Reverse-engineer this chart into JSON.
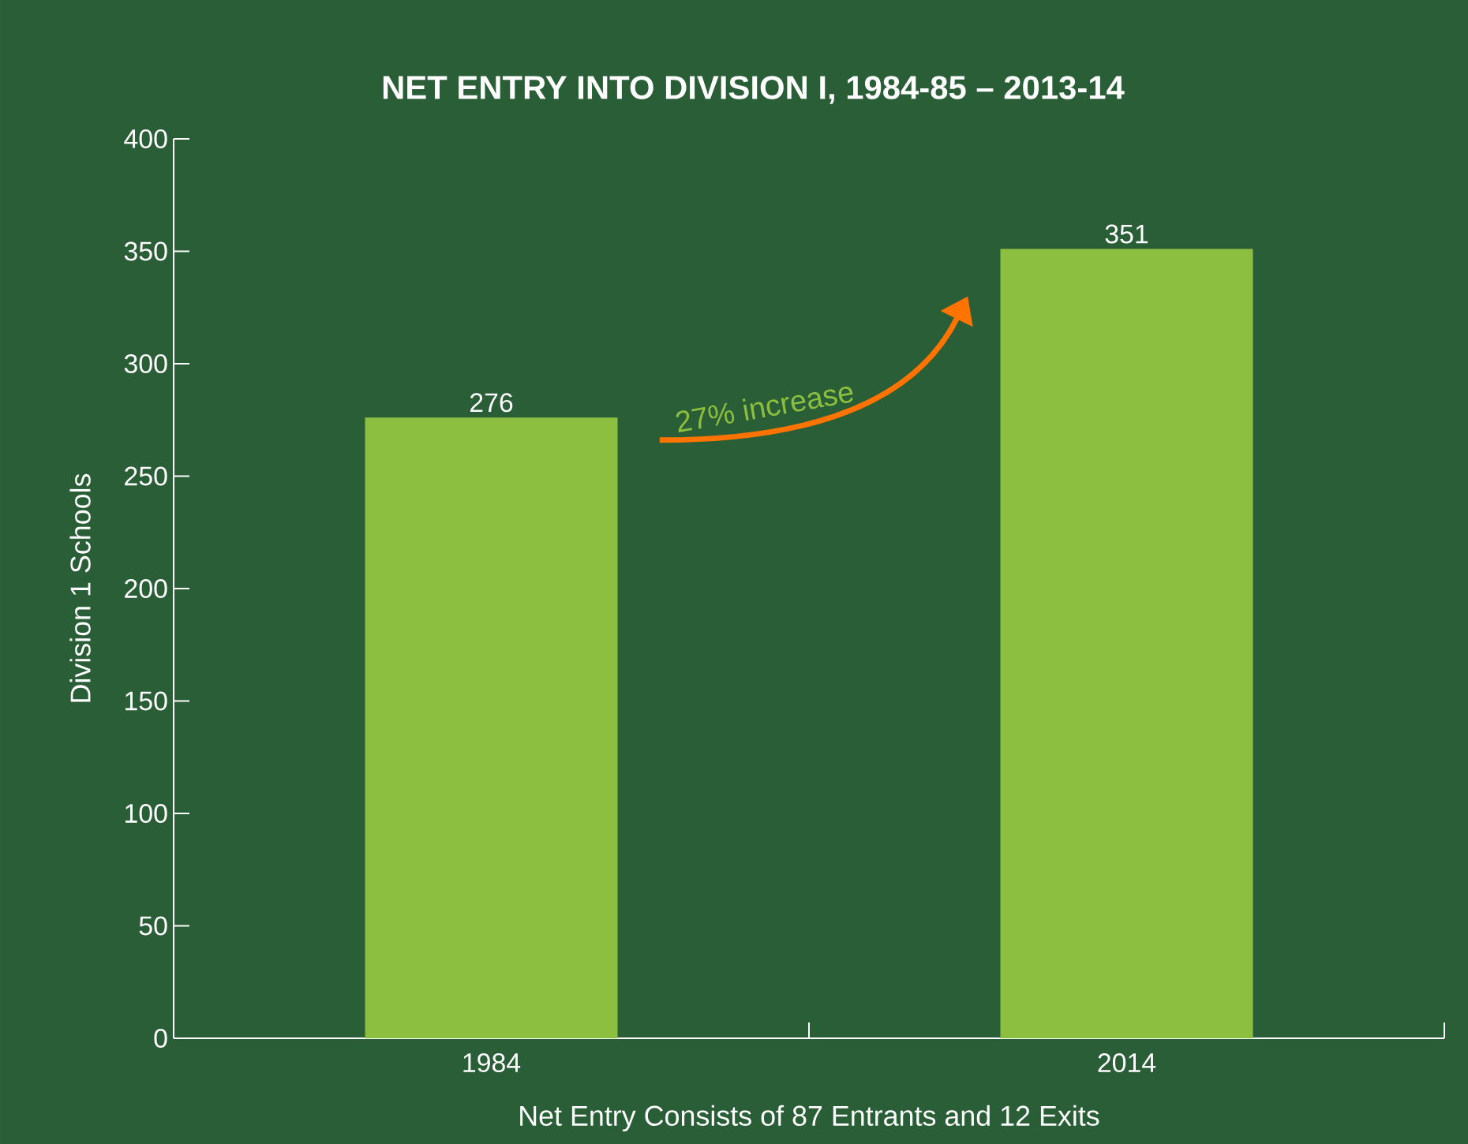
{
  "chart_data": {
    "type": "bar",
    "title": "NET ENTRY INTO DIVISION I, 1984-85 – 2013-14",
    "xlabel": "Net Entry Consists of 87 Entrants and 12 Exits",
    "ylabel": "Division 1 Schools",
    "categories": [
      "1984",
      "2014"
    ],
    "values": [
      276,
      351
    ],
    "color": "#8cbf3f",
    "data_labels": true,
    "ylim": [
      0,
      400
    ],
    "yticks": [
      0,
      50,
      100,
      150,
      200,
      250,
      300,
      350,
      400
    ],
    "grid": false,
    "annotations": [
      "27% increase"
    ]
  }
}
